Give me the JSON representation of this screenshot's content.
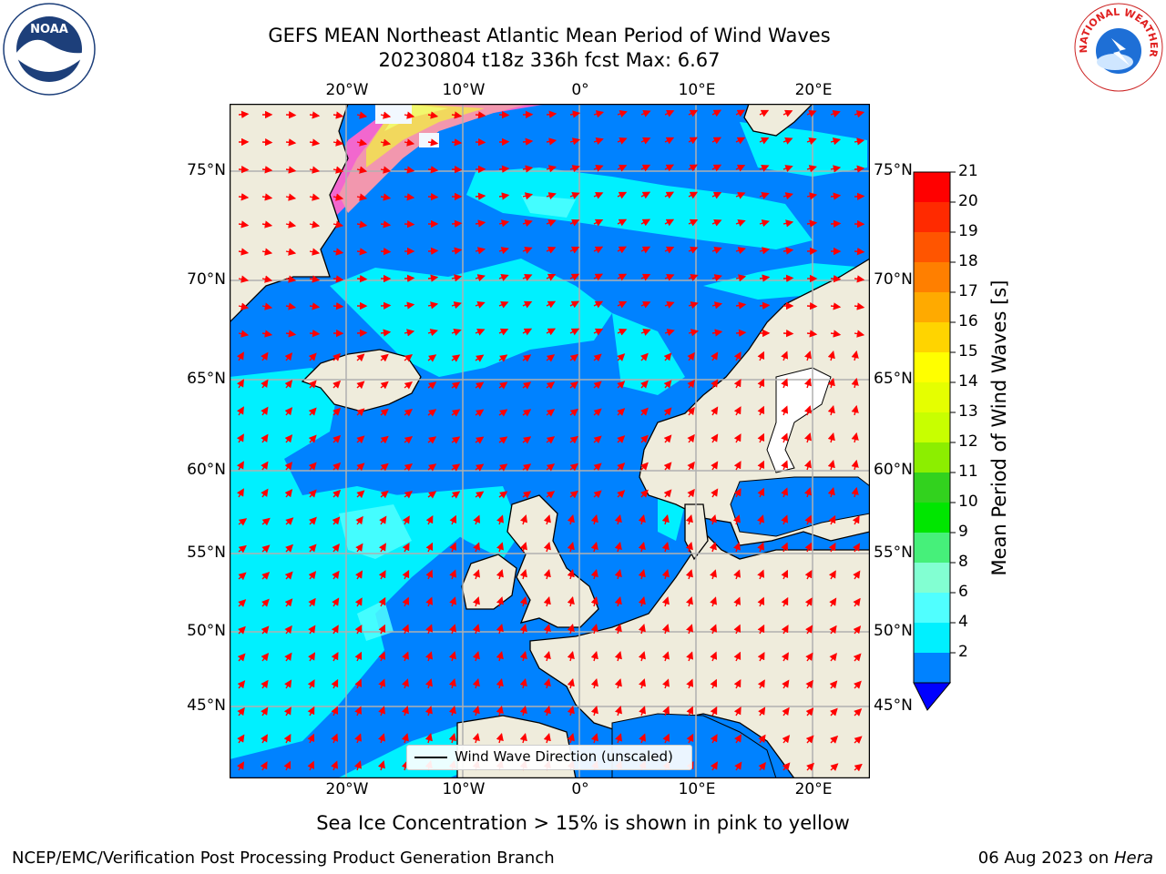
{
  "title_line1": "GEFS MEAN Northeast Atlantic Mean Period of Wind Waves",
  "title_line2": "20230804 t18z 336h fcst   Max: 6.67",
  "lon_labels": [
    "20°W",
    "10°W",
    "0°",
    "10°E",
    "20°E"
  ],
  "lat_labels": [
    "75°N",
    "70°N",
    "65°N",
    "60°N",
    "55°N",
    "50°N",
    "45°N"
  ],
  "colorbar": {
    "label": "Mean Period of Wind Waves [s]",
    "ticks": [
      "21",
      "20",
      "19",
      "18",
      "17",
      "16",
      "15",
      "14",
      "13",
      "12",
      "11",
      "10",
      "9",
      "8",
      "6",
      "4",
      "2"
    ],
    "colors": [
      "#ff0000",
      "#ff2a00",
      "#ff5500",
      "#ff7f00",
      "#ffaa00",
      "#ffd400",
      "#ffff00",
      "#e5ff00",
      "#c8ff00",
      "#8cee00",
      "#32d21e",
      "#00e600",
      "#46f07a",
      "#82ffd2",
      "#50ffff",
      "#00f0ff",
      "#0082ff"
    ],
    "underflow_color": "#0000ff"
  },
  "legend_text": "Wind Wave Direction (unscaled)",
  "ice_note": "Sea Ice Concentration > 15% is shown in pink to yellow",
  "footer_left": "NCEP/EMC/Verification Post Processing Product Generation Branch",
  "footer_date": "06 Aug 2023 on ",
  "footer_host": "Hera",
  "logos": {
    "noaa_text": "NOAA",
    "nws_text": "NATIONAL WEATHER SERVICE"
  },
  "colors": {
    "ocean_dark": "#0082ff",
    "ocean_light": "#00f0ff",
    "ocean_pale": "#50ffff",
    "land": "#efecdc",
    "arrow": "#ff0000",
    "grid": "#b0b0b0"
  }
}
